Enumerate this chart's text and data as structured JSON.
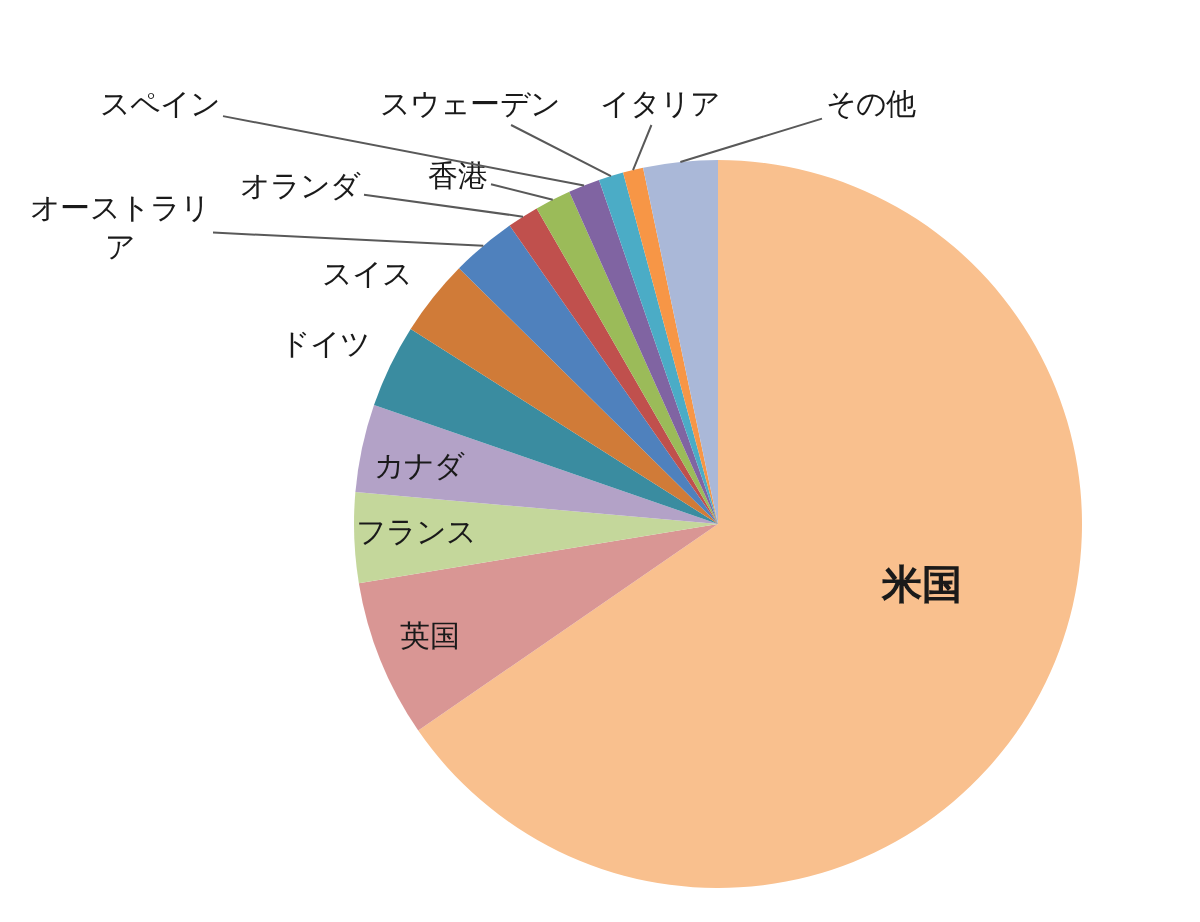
{
  "chart_data": {
    "type": "pie",
    "categories": [
      "米国",
      "英国",
      "フランス",
      "カナダ",
      "ドイツ",
      "スイス",
      "オーストラリア",
      "オランダ",
      "香港",
      "スペイン",
      "スウェーデン",
      "イタリア",
      "その他"
    ],
    "values": [
      65.4,
      7.0,
      4.0,
      3.9,
      3.7,
      3.4,
      2.9,
      1.4,
      1.6,
      1.4,
      1.1,
      0.9,
      3.3
    ],
    "colors": [
      "#f9c08e",
      "#d99694",
      "#c4d79b",
      "#b3a2c7",
      "#3a8ca0",
      "#d07b38",
      "#4f81bd",
      "#c0504d",
      "#9bbb59",
      "#8064a2",
      "#4bacc6",
      "#f79646",
      "#aab8d8"
    ]
  }
}
